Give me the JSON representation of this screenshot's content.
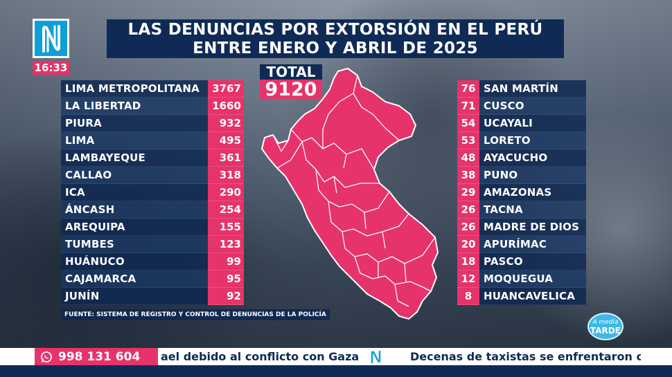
{
  "header": {
    "title_line1": "LAS DENUNCIAS POR EXTORSIÓN EN EL PERÚ",
    "title_line2": "ENTRE ENERO Y ABRIL DE 2025",
    "time": "16:33"
  },
  "total": {
    "label": "TOTAL",
    "value": "9120"
  },
  "left_regions": [
    {
      "name": "LIMA METROPOLITANA",
      "value": "3767"
    },
    {
      "name": "LA LIBERTAD",
      "value": "1660"
    },
    {
      "name": "PIURA",
      "value": "932"
    },
    {
      "name": "LIMA",
      "value": "495"
    },
    {
      "name": "LAMBAYEQUE",
      "value": "361"
    },
    {
      "name": "CALLAO",
      "value": "318"
    },
    {
      "name": "ICA",
      "value": "290"
    },
    {
      "name": "ÁNCASH",
      "value": "254"
    },
    {
      "name": "AREQUIPA",
      "value": "155"
    },
    {
      "name": "TUMBES",
      "value": "123"
    },
    {
      "name": "HUÁNUCO",
      "value": "99"
    },
    {
      "name": "CAJAMARCA",
      "value": "95"
    },
    {
      "name": "JUNÍN",
      "value": "92"
    }
  ],
  "right_regions": [
    {
      "name": "SAN MARTÍN",
      "value": "76"
    },
    {
      "name": "CUSCO",
      "value": "71"
    },
    {
      "name": "UCAYALI",
      "value": "54"
    },
    {
      "name": "LORETO",
      "value": "53"
    },
    {
      "name": "AYACUCHO",
      "value": "48"
    },
    {
      "name": "PUNO",
      "value": "38"
    },
    {
      "name": "AMAZONAS",
      "value": "29"
    },
    {
      "name": "TACNA",
      "value": "26"
    },
    {
      "name": "MADRE DE DIOS",
      "value": "26"
    },
    {
      "name": "APURÍMAC",
      "value": "20"
    },
    {
      "name": "PASCO",
      "value": "18"
    },
    {
      "name": "MOQUEGUA",
      "value": "12"
    },
    {
      "name": "HUANCAVELICA",
      "value": "8"
    }
  ],
  "source": "FUENTE: SISTEMA DE REGISTRO Y CONTROL DE DENUNCIAS DE LA POLICÍA",
  "corner_logo": {
    "line1": "A media",
    "line2": "TARDE"
  },
  "ticker": {
    "phone": "998 131 604",
    "item1": "ael debido al conflicto con Gaza",
    "item2": "Decenas de taxistas se enfrentaron con l"
  },
  "colors": {
    "navy": "#0f2a55",
    "pink": "#e6336b",
    "cyan": "#0f9fd8"
  }
}
